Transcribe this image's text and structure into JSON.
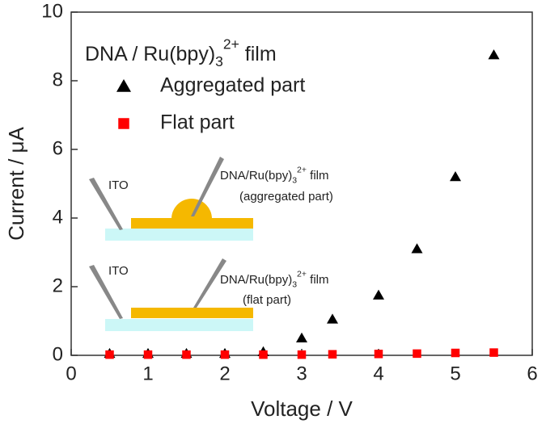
{
  "chart_data": {
    "type": "scatter",
    "xlabel": "Voltage / V",
    "ylabel": "Current / μA",
    "xlim": [
      0,
      6
    ],
    "ylim": [
      0,
      10
    ],
    "xticks": [
      0,
      1,
      2,
      3,
      4,
      5,
      6
    ],
    "yticks": [
      0,
      2,
      4,
      6,
      8,
      10
    ],
    "legend_title": {
      "text": "DNA / Ru(bpy)",
      "sub": "3",
      "sup": "2+",
      "tail": " film"
    },
    "series": [
      {
        "name": "Aggregated part",
        "color": "#000000",
        "marker": "triangle",
        "x": [
          0.5,
          1,
          1.5,
          2,
          2.5,
          3,
          3.4,
          4,
          4.5,
          5,
          5.5
        ],
        "values": [
          0.05,
          0.05,
          0.05,
          0.05,
          0.1,
          0.5,
          1.05,
          1.75,
          3.1,
          5.2,
          8.75
        ]
      },
      {
        "name": "Flat part",
        "color": "#ff0000",
        "marker": "square",
        "x": [
          0.5,
          1,
          1.5,
          2,
          2.5,
          3,
          3.4,
          4,
          4.5,
          5,
          5.5
        ],
        "values": [
          0.02,
          0.02,
          0.02,
          0.02,
          0.02,
          0.02,
          0.03,
          0.04,
          0.05,
          0.07,
          0.08
        ]
      }
    ],
    "inset": {
      "aggregated": {
        "electrode": "ITO",
        "film": {
          "text": "DNA/Ru(bpy)",
          "sub": "3",
          "sup": "2+",
          "tail": " film"
        },
        "part": "(aggregated part)"
      },
      "flat": {
        "electrode": "ITO",
        "film": {
          "text": "DNA/Ru(bpy)",
          "sub": "3",
          "sup": "2+",
          "tail": " film"
        },
        "part": "(flat part)"
      }
    }
  }
}
